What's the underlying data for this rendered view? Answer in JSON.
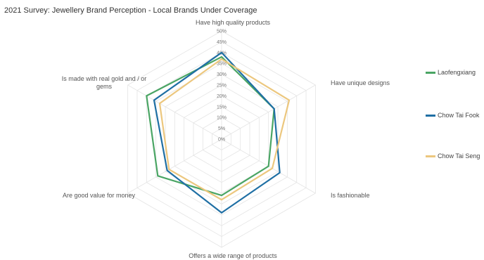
{
  "chart_data": {
    "type": "radar",
    "title": "2021 Survey: Jewellery Brand Perception - Local Brands Under Coverage",
    "axes": [
      "Have high quality products",
      "Have unique designs",
      "Is fashionable",
      "Offers a wide range of products",
      "Are good value for money",
      "Is made with real gold and / or gems"
    ],
    "ticks": [
      "0%",
      "5%",
      "10%",
      "15%",
      "20%",
      "25%",
      "30%",
      "35%",
      "40%",
      "45%",
      "50%"
    ],
    "rmax": 50,
    "series": [
      {
        "name": "Laofengxiang",
        "color": "#4aa564",
        "values": [
          38,
          28,
          25,
          26,
          34,
          40
        ]
      },
      {
        "name": "Chow Tai Fook",
        "color": "#1f6fa4",
        "values": [
          40,
          28,
          31,
          34,
          29,
          36
        ]
      },
      {
        "name": "Chow Tai Seng",
        "color": "#ecc77e",
        "values": [
          37,
          36,
          27,
          28,
          28,
          33
        ]
      }
    ]
  }
}
